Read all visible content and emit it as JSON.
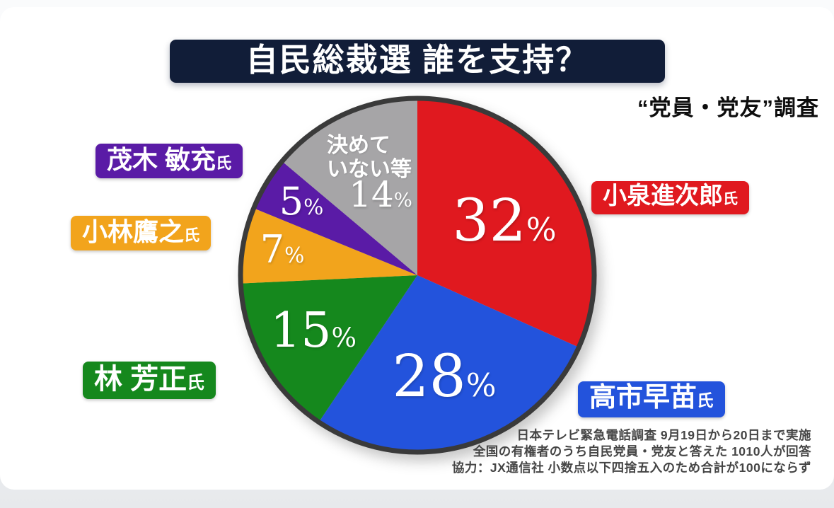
{
  "header": {
    "title": "自民総裁選 誰を支持？",
    "survey_type": "“党員・党友”調査"
  },
  "chart_data": {
    "type": "pie",
    "title": "自民総裁選 誰を支持？",
    "unit": "%",
    "start_angle_deg": 0,
    "direction": "clockwise",
    "rim_color": "#3a3a3a",
    "slices": [
      {
        "label": "小泉進次郎",
        "suffix": "氏",
        "value": 32,
        "color": "#e0191f"
      },
      {
        "label": "高市早苗",
        "suffix": "氏",
        "value": 28,
        "color": "#2353dc"
      },
      {
        "label": "林 芳正",
        "suffix": "氏",
        "value": 15,
        "color": "#15881d"
      },
      {
        "label": "小林鷹之",
        "suffix": "氏",
        "value": 7,
        "color": "#f2a41c"
      },
      {
        "label": "茂木 敏充",
        "suffix": "氏",
        "value": 5,
        "color": "#5a1ba6"
      },
      {
        "label": "決めていない等",
        "suffix": "",
        "value": 14,
        "color": "#a6a5a7",
        "inner_lines": [
          "決めて",
          "いない等"
        ]
      }
    ]
  },
  "footer": {
    "lines": [
      "日本テレビ緊急電話調査 9月19日から20日まで実施",
      "全国の有権者のうち自民党員・党友と答えた 1010人が回答",
      "協力：JX通信社 小数点以下四捨五入のため合計が100にならず"
    ]
  }
}
